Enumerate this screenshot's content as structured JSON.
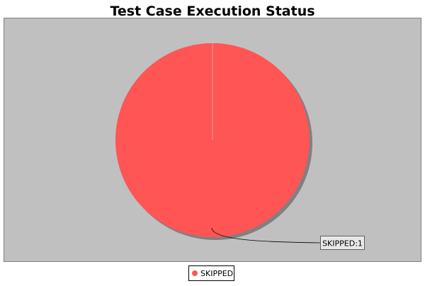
{
  "chart_data": {
    "type": "pie",
    "title": "Test Case Execution Status",
    "slices": [
      {
        "label": "SKIPPED",
        "value": 1,
        "color": "#ff5555"
      }
    ],
    "slice_labels": [
      "SKIPPED:1"
    ],
    "legend": {
      "placement": "bottom",
      "items": [
        {
          "label": "SKIPPED",
          "color": "#ff5555"
        }
      ]
    }
  },
  "colors": {
    "plot_background": "#c0c0c0",
    "page_background": "#ffffff",
    "shadow": "#808080"
  }
}
